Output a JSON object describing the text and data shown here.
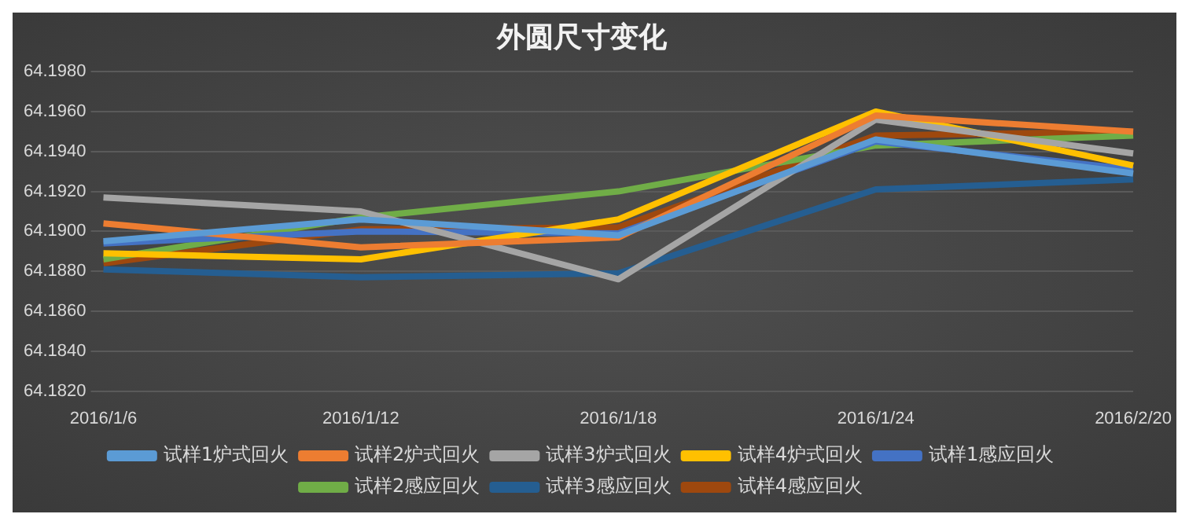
{
  "chart_data": {
    "type": "line",
    "title": "外圆尺寸变化",
    "categories": [
      "2016/1/6",
      "2016/1/12",
      "2016/1/18",
      "2016/1/24",
      "2016/2/20"
    ],
    "series": [
      {
        "name": "试样1炉式回火",
        "color": "#5b9bd5",
        "values": [
          64.1895,
          64.1906,
          64.1898,
          64.1946,
          64.1929
        ]
      },
      {
        "name": "试样2炉式回火",
        "color": "#ed7d31",
        "values": [
          64.1904,
          64.1892,
          64.1897,
          64.1958,
          64.195
        ]
      },
      {
        "name": "试样3炉式回火",
        "color": "#a5a5a5",
        "values": [
          64.1917,
          64.191,
          64.1876,
          64.1956,
          64.1939
        ]
      },
      {
        "name": "试样4炉式回火",
        "color": "#ffc000",
        "values": [
          64.1889,
          64.1886,
          64.1906,
          64.196,
          64.1933
        ]
      },
      {
        "name": "试样1感应回火",
        "color": "#4472c4",
        "values": [
          64.1894,
          64.19,
          64.1899,
          64.1945,
          64.1931
        ]
      },
      {
        "name": "试样2感应回火",
        "color": "#70ad47",
        "values": [
          64.1886,
          64.1907,
          64.192,
          64.1943,
          64.1948
        ]
      },
      {
        "name": "试样3感应回火",
        "color": "#255e91",
        "values": [
          64.1881,
          64.1877,
          64.1879,
          64.1921,
          64.1926
        ]
      },
      {
        "name": "试样4感应回火",
        "color": "#9e480e",
        "values": [
          64.1884,
          64.1901,
          64.1902,
          64.1948,
          64.195
        ]
      }
    ],
    "ylim": [
      64.182,
      64.198
    ],
    "yticks": [
      {
        "value": 64.182,
        "label": "64.1820"
      },
      {
        "value": 64.184,
        "label": "64.1840"
      },
      {
        "value": 64.186,
        "label": "64.1860"
      },
      {
        "value": 64.188,
        "label": "64.1880"
      },
      {
        "value": 64.19,
        "label": "64.1900"
      },
      {
        "value": 64.192,
        "label": "64.1920"
      },
      {
        "value": 64.194,
        "label": "64.1940"
      },
      {
        "value": 64.196,
        "label": "64.1960"
      },
      {
        "value": 64.198,
        "label": "64.1980"
      }
    ],
    "grid": "y",
    "legend": "bottom",
    "marker": "none",
    "line_style": "solid"
  }
}
